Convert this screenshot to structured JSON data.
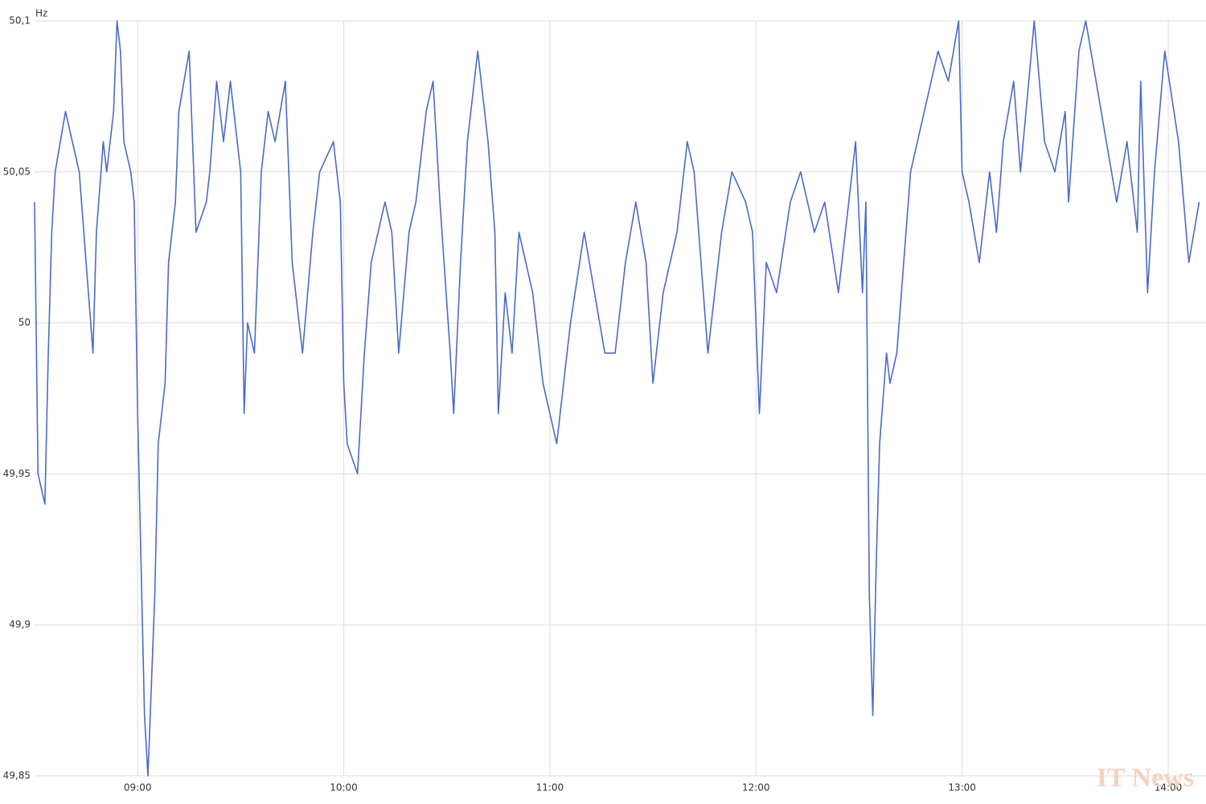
{
  "chart_data": {
    "type": "line",
    "unit": "Hz",
    "watermark": "IT News",
    "x": [
      "08:30",
      "08:31",
      "08:33",
      "08:34",
      "08:35",
      "08:36",
      "08:39",
      "08:41",
      "08:43",
      "08:45",
      "08:47",
      "08:48",
      "08:50",
      "08:51",
      "08:53",
      "08:54",
      "08:55",
      "08:56",
      "08:58",
      "08:59",
      "09:00",
      "09:01",
      "09:02",
      "09:03",
      "09:05",
      "09:06",
      "09:08",
      "09:09",
      "09:11",
      "09:12",
      "09:15",
      "09:17",
      "09:20",
      "09:21",
      "09:23",
      "09:25",
      "09:27",
      "09:30",
      "09:31",
      "09:32",
      "09:34",
      "09:36",
      "09:38",
      "09:40",
      "09:43",
      "09:45",
      "09:48",
      "09:51",
      "09:53",
      "09:57",
      "09:59",
      "10:00",
      "10:01",
      "10:04",
      "10:06",
      "10:08",
      "10:12",
      "10:14",
      "10:16",
      "10:19",
      "10:21",
      "10:24",
      "10:26",
      "10:28",
      "10:31",
      "10:32",
      "10:34",
      "10:36",
      "10:39",
      "10:42",
      "10:44",
      "10:45",
      "10:47",
      "10:49",
      "10:51",
      "10:55",
      "10:58",
      "11:02",
      "11:04",
      "11:06",
      "11:10",
      "11:13",
      "11:16",
      "11:19",
      "11:22",
      "11:25",
      "11:28",
      "11:30",
      "11:33",
      "11:37",
      "11:40",
      "11:42",
      "11:44",
      "11:46",
      "11:50",
      "11:53",
      "11:57",
      "11:59",
      "12:01",
      "12:03",
      "12:06",
      "12:10",
      "12:13",
      "12:17",
      "12:20",
      "12:24",
      "12:27",
      "12:29",
      "12:31",
      "12:32",
      "12:33",
      "12:34",
      "12:35",
      "12:36",
      "12:38",
      "12:39",
      "12:41",
      "12:43",
      "12:45",
      "12:47",
      "12:49",
      "12:53",
      "12:56",
      "12:59",
      "13:00",
      "13:02",
      "13:05",
      "13:08",
      "13:10",
      "13:12",
      "13:15",
      "13:17",
      "13:21",
      "13:24",
      "13:27",
      "13:30",
      "13:31",
      "13:34",
      "13:36",
      "13:39",
      "13:42",
      "13:45",
      "13:48",
      "13:51",
      "13:52",
      "13:54",
      "13:56",
      "13:59",
      "14:03",
      "14:06",
      "14:09"
    ],
    "series": [
      {
        "color": "#4a6bc6",
        "values": [
          50.04,
          49.95,
          49.94,
          49.99,
          50.03,
          50.05,
          50.07,
          50.06,
          50.05,
          50.02,
          49.99,
          50.03,
          50.06,
          50.05,
          50.07,
          50.1,
          50.09,
          50.06,
          50.05,
          50.04,
          49.97,
          49.92,
          49.87,
          49.85,
          49.91,
          49.96,
          49.98,
          50.02,
          50.04,
          50.07,
          50.09,
          50.03,
          50.04,
          50.05,
          50.08,
          50.06,
          50.08,
          50.05,
          49.97,
          50.0,
          49.99,
          50.05,
          50.07,
          50.06,
          50.08,
          50.02,
          49.99,
          50.03,
          50.05,
          50.06,
          50.04,
          49.98,
          49.96,
          49.95,
          49.99,
          50.02,
          50.04,
          50.03,
          49.99,
          50.03,
          50.04,
          50.07,
          50.08,
          50.04,
          49.99,
          49.97,
          50.02,
          50.06,
          50.09,
          50.06,
          50.03,
          49.97,
          50.01,
          49.99,
          50.03,
          50.01,
          49.98,
          49.96,
          49.98,
          50.0,
          50.03,
          50.01,
          49.99,
          49.99,
          50.02,
          50.04,
          50.02,
          49.98,
          50.01,
          50.03,
          50.06,
          50.05,
          50.02,
          49.99,
          50.03,
          50.05,
          50.04,
          50.03,
          49.97,
          50.02,
          50.01,
          50.04,
          50.05,
          50.03,
          50.04,
          50.01,
          50.04,
          50.06,
          50.01,
          50.04,
          49.91,
          49.87,
          49.92,
          49.96,
          49.99,
          49.98,
          49.99,
          50.02,
          50.05,
          50.06,
          50.07,
          50.09,
          50.08,
          50.1,
          50.05,
          50.04,
          50.02,
          50.05,
          50.03,
          50.06,
          50.08,
          50.05,
          50.1,
          50.06,
          50.05,
          50.07,
          50.04,
          50.09,
          50.1,
          50.08,
          50.06,
          50.04,
          50.06,
          50.03,
          50.08,
          50.01,
          50.05,
          50.09,
          50.06,
          50.02,
          50.04
        ]
      }
    ],
    "xlim": [
      "08:30",
      "14:11"
    ],
    "xticks": [
      "09:00",
      "10:00",
      "11:00",
      "12:00",
      "13:00",
      "14:00"
    ],
    "ylim": [
      49.85,
      50.1
    ],
    "yticks": [
      {
        "value": 49.85,
        "label": "49,85"
      },
      {
        "value": 49.9,
        "label": "49,9"
      },
      {
        "value": 49.95,
        "label": "49,95"
      },
      50,
      {
        "value": 50.05,
        "label": "50,05"
      },
      {
        "value": 50.1,
        "label": "50,1"
      }
    ],
    "grid": true
  }
}
